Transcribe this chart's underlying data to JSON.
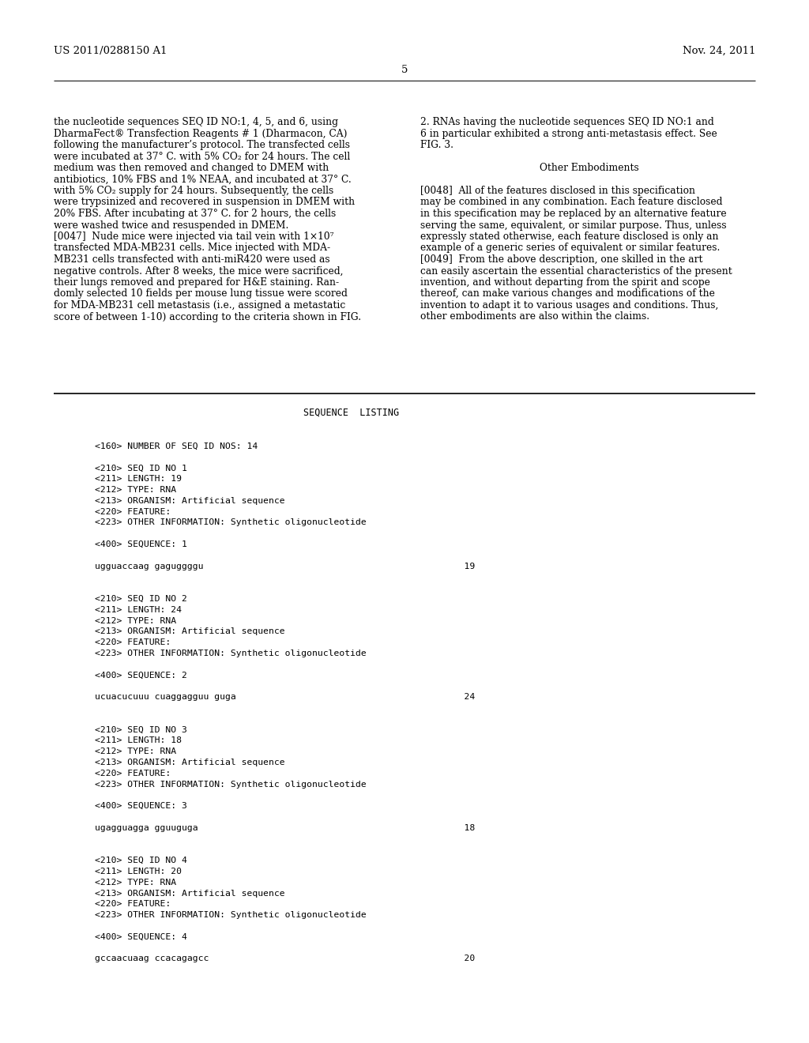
{
  "bg_color": "#ffffff",
  "header_left": "US 2011/0288150 A1",
  "header_right": "Nov. 24, 2011",
  "header_center": "5",
  "left_col_text": [
    "the nucleotide sequences SEQ ID NO:1, 4, 5, and 6, using",
    "DharmaFect® Transfection Reagents # 1 (Dharmacon, CA)",
    "following the manufacturer’s protocol. The transfected cells",
    "were incubated at 37° C. with 5% CO₂ for 24 hours. The cell",
    "medium was then removed and changed to DMEM with",
    "antibiotics, 10% FBS and 1% NEAA, and incubated at 37° C.",
    "with 5% CO₂ supply for 24 hours. Subsequently, the cells",
    "were trypsinized and recovered in suspension in DMEM with",
    "20% FBS. After incubating at 37° C. for 2 hours, the cells",
    "were washed twice and resuspended in DMEM.",
    "[0047]  Nude mice were injected via tail vein with 1×10⁷",
    "transfected MDA-MB231 cells. Mice injected with MDA-",
    "MB231 cells transfected with anti-miR420 were used as",
    "negative controls. After 8 weeks, the mice were sacrificed,",
    "their lungs removed and prepared for H&E staining. Ran-",
    "domly selected 10 fields per mouse lung tissue were scored",
    "for MDA-MB231 cell metastasis (i.e., assigned a metastatic",
    "score of between 1-10) according to the criteria shown in FIG."
  ],
  "right_col_text": [
    "2. RNAs having the nucleotide sequences SEQ ID NO:1 and",
    "6 in particular exhibited a strong anti-metastasis effect. See",
    "FIG. 3.",
    "",
    "Other Embodiments",
    "",
    "[0048]  All of the features disclosed in this specification",
    "may be combined in any combination. Each feature disclosed",
    "in this specification may be replaced by an alternative feature",
    "serving the same, equivalent, or similar purpose. Thus, unless",
    "expressly stated otherwise, each feature disclosed is only an",
    "example of a generic series of equivalent or similar features.",
    "[0049]  From the above description, one skilled in the art",
    "can easily ascertain the essential characteristics of the present",
    "invention, and without departing from the spirit and scope",
    "thereof, can make various changes and modifications of the",
    "invention to adapt it to various usages and conditions. Thus,",
    "other embodiments are also within the claims."
  ],
  "seq_title": "SEQUENCE  LISTING",
  "seq_lines": [
    "",
    "<160> NUMBER OF SEQ ID NOS: 14",
    "",
    "<210> SEQ ID NO 1",
    "<211> LENGTH: 19",
    "<212> TYPE: RNA",
    "<213> ORGANISM: Artificial sequence",
    "<220> FEATURE:",
    "<223> OTHER INFORMATION: Synthetic oligonucleotide",
    "",
    "<400> SEQUENCE: 1",
    "",
    "ugguaccaag gaguggggu                                                19",
    "",
    "",
    "<210> SEQ ID NO 2",
    "<211> LENGTH: 24",
    "<212> TYPE: RNA",
    "<213> ORGANISM: Artificial sequence",
    "<220> FEATURE:",
    "<223> OTHER INFORMATION: Synthetic oligonucleotide",
    "",
    "<400> SEQUENCE: 2",
    "",
    "ucuacucuuu cuaggagguu guga                                          24",
    "",
    "",
    "<210> SEQ ID NO 3",
    "<211> LENGTH: 18",
    "<212> TYPE: RNA",
    "<213> ORGANISM: Artificial sequence",
    "<220> FEATURE:",
    "<223> OTHER INFORMATION: Synthetic oligonucleotide",
    "",
    "<400> SEQUENCE: 3",
    "",
    "ugagguagga gguuguga                                                 18",
    "",
    "",
    "<210> SEQ ID NO 4",
    "<211> LENGTH: 20",
    "<212> TYPE: RNA",
    "<213> ORGANISM: Artificial sequence",
    "<220> FEATURE:",
    "<223> OTHER INFORMATION: Synthetic oligonucleotide",
    "",
    "<400> SEQUENCE: 4",
    "",
    "gccaacuaag ccacagagcc                                               20",
    ""
  ]
}
